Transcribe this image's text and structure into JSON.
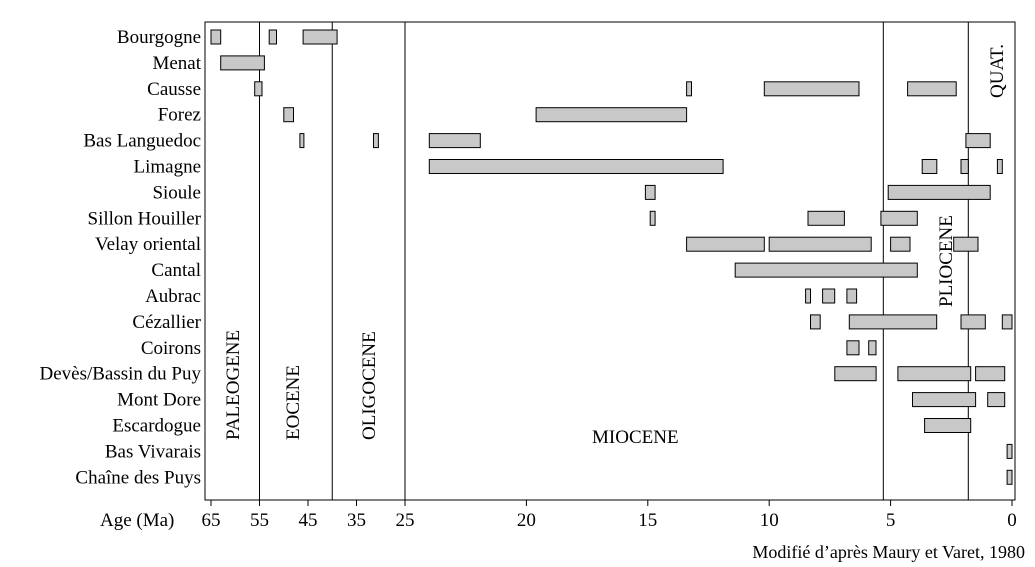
{
  "chart_data": {
    "type": "timeline",
    "xlabel": "Age (Ma)",
    "x_reversed": true,
    "x_axis_segments": [
      {
        "from": 65,
        "to": 25,
        "note": "compressed scale"
      },
      {
        "from": 25,
        "to": 0,
        "note": "linear scale"
      }
    ],
    "x_ticks": [
      "65",
      "55",
      "45",
      "35",
      "25",
      "20",
      "15",
      "10",
      "5",
      "0"
    ],
    "boundaries_ma": [
      55,
      40,
      25,
      5.3,
      1.8
    ],
    "periods": [
      {
        "label": "PALEOGENE",
        "orientation": "vertical"
      },
      {
        "label": "EOCENE",
        "orientation": "vertical"
      },
      {
        "label": "OLIGOCENE",
        "orientation": "vertical"
      },
      {
        "label": "MIOCENE",
        "orientation": "horizontal"
      },
      {
        "label": "PLIOCENE",
        "orientation": "vertical"
      },
      {
        "label": "QUAT.",
        "orientation": "vertical"
      }
    ],
    "credit": "Modifié d’après Maury et Varet, 1980",
    "rows": [
      {
        "name": "Bourgogne",
        "bars": [
          [
            65,
            63
          ],
          [
            53,
            51.5
          ],
          [
            46,
            39
          ]
        ]
      },
      {
        "name": "Menat",
        "bars": [
          [
            63,
            54
          ]
        ]
      },
      {
        "name": "Causse",
        "bars": [
          [
            56,
            54.5
          ],
          [
            13.4,
            13.2
          ],
          [
            10.2,
            6.3
          ],
          [
            4.3,
            2.3
          ]
        ]
      },
      {
        "name": "Forez",
        "bars": [
          [
            50,
            48
          ],
          [
            19.6,
            13.4
          ]
        ]
      },
      {
        "name": "Bas Languedoc",
        "bars": [
          [
            46.5,
            46
          ],
          [
            31.5,
            30.5
          ],
          [
            24,
            21.9
          ],
          [
            1.9,
            0.9
          ]
        ]
      },
      {
        "name": "Limagne",
        "bars": [
          [
            24,
            11.9
          ],
          [
            3.7,
            3.1
          ],
          [
            2.1,
            1.8
          ],
          [
            0.6,
            0.4
          ]
        ]
      },
      {
        "name": "Sioule",
        "bars": [
          [
            15.1,
            14.7
          ],
          [
            5.1,
            0.9
          ]
        ]
      },
      {
        "name": "Sillon Houiller",
        "bars": [
          [
            14.9,
            14.7
          ],
          [
            8.4,
            6.9
          ],
          [
            5.4,
            3.9
          ]
        ]
      },
      {
        "name": "Velay oriental",
        "bars": [
          [
            13.4,
            10.2
          ],
          [
            10.0,
            5.8
          ],
          [
            5.0,
            4.2
          ],
          [
            2.4,
            1.4
          ]
        ]
      },
      {
        "name": "Cantal",
        "bars": [
          [
            11.4,
            3.9
          ]
        ]
      },
      {
        "name": "Aubrac",
        "bars": [
          [
            8.5,
            8.3
          ],
          [
            7.8,
            7.3
          ],
          [
            6.8,
            6.4
          ]
        ]
      },
      {
        "name": "Cézallier",
        "bars": [
          [
            8.3,
            7.9
          ],
          [
            6.7,
            3.1
          ],
          [
            2.1,
            1.1
          ],
          [
            0.4,
            0.0
          ]
        ]
      },
      {
        "name": "Coirons",
        "bars": [
          [
            6.8,
            6.3
          ],
          [
            5.9,
            5.6
          ]
        ]
      },
      {
        "name": "Devès/Bassin du Puy",
        "bars": [
          [
            7.3,
            5.6
          ],
          [
            4.7,
            1.7
          ],
          [
            1.5,
            0.3
          ]
        ]
      },
      {
        "name": "Mont Dore",
        "bars": [
          [
            4.1,
            1.5
          ],
          [
            1.0,
            0.3
          ]
        ]
      },
      {
        "name": "Escardogue",
        "bars": [
          [
            3.6,
            1.7
          ]
        ]
      },
      {
        "name": "Bas Vivarais",
        "bars": [
          [
            0.2,
            0.0
          ]
        ]
      },
      {
        "name": "Chaîne des Puys",
        "bars": [
          [
            0.2,
            0.0
          ]
        ]
      }
    ]
  }
}
